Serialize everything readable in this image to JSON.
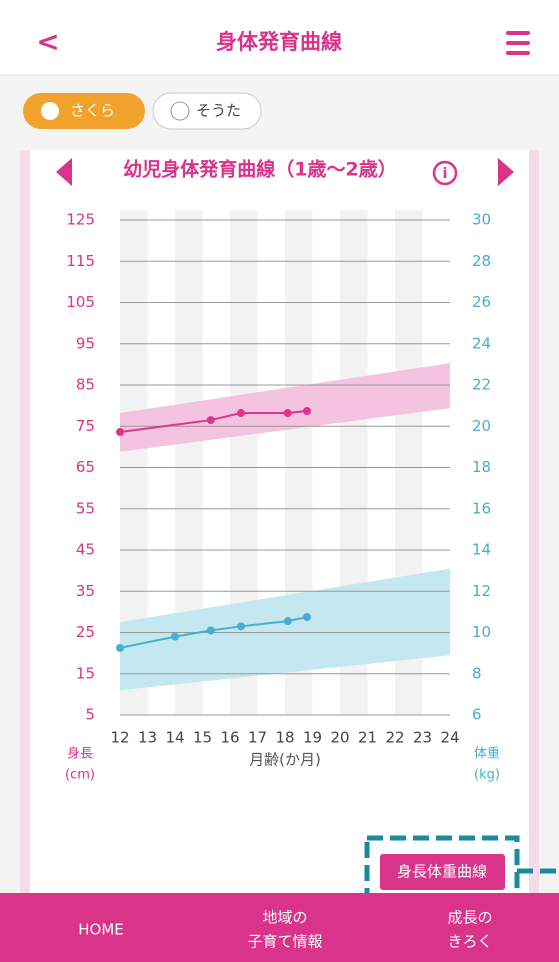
{
  "header": {
    "back": "<",
    "title": "身体発育曲線"
  },
  "tabs": [
    "さくら",
    "そうた"
  ],
  "chart_data": {
    "type": "line",
    "title": "幼児身体発育曲線（1歳〜2歳）",
    "x_label": "月齢(か月)",
    "y_label": [
      "身長",
      "(cm)"
    ],
    "y2_label": [
      "体重",
      "(kg)"
    ],
    "xlim": [
      12,
      24
    ],
    "xticks": [
      12,
      13,
      14,
      15,
      16,
      17,
      18,
      19,
      20,
      21,
      22,
      23,
      24
    ],
    "ylim": [
      5,
      125
    ],
    "yticks": [
      5,
      15,
      25,
      35,
      45,
      55,
      65,
      75,
      85,
      95,
      105,
      115,
      125
    ],
    "y2lim": [
      6,
      30
    ],
    "y2ticks": [
      6,
      8,
      10,
      12,
      14,
      16,
      18,
      20,
      22,
      24,
      26,
      28,
      30
    ],
    "grid": true,
    "bands": [
      {
        "color": "#f4c3df",
        "x": [
          12,
          24
        ],
        "upper": [
          78.2,
          90.3
        ],
        "lower": [
          68.8,
          79.4
        ]
      },
      {
        "color": "#c4e7f0",
        "axis": "y2",
        "x": [
          12,
          24
        ],
        "upper": [
          10.5,
          13.1
        ],
        "lower": [
          7.2,
          8.9
        ]
      }
    ],
    "series": [
      {
        "color": "#e0338a",
        "x": [
          12,
          15.3,
          16.4,
          18.1,
          18.8
        ],
        "values": [
          73.6,
          76.5,
          78.2,
          78.2,
          78.7
        ]
      },
      {
        "color": "#46afd0",
        "axis": "y2",
        "x": [
          12,
          14,
          15.3,
          16.4,
          18.1,
          18.8
        ],
        "values": [
          9.25,
          9.8,
          10.1,
          10.3,
          10.55,
          10.75
        ]
      }
    ]
  },
  "button": "身長体重曲線",
  "nav": [
    [
      "HOME"
    ],
    [
      "地域の",
      "子育て情報"
    ],
    [
      "成長の",
      "きろく"
    ]
  ]
}
